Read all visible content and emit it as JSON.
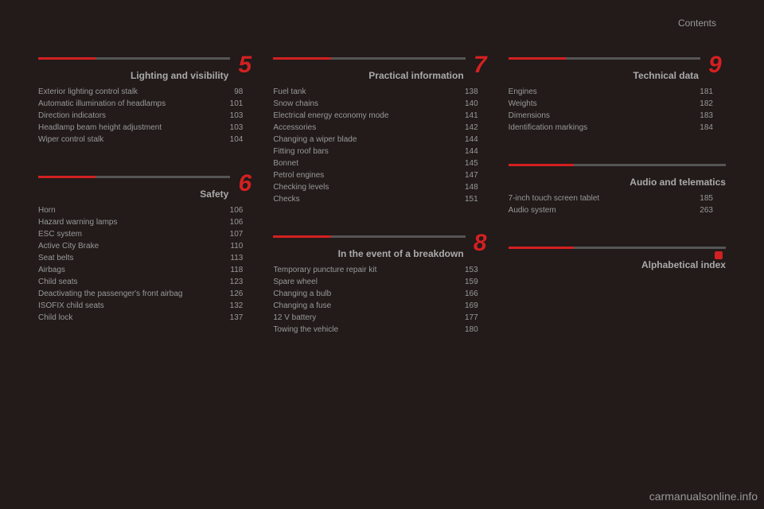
{
  "page_label": "Contents",
  "watermark": "carmanualsonline.info",
  "colors": {
    "accent": "#d32020",
    "bar_grey": "#555555",
    "text": "#999999",
    "background": "#221b1a"
  },
  "columns": [
    [
      {
        "number": "5",
        "title": "Lighting and visibility",
        "items": [
          {
            "label": "Exterior lighting control stalk",
            "page": "98"
          },
          {
            "label": "Automatic illumination of headlamps",
            "page": "101"
          },
          {
            "label": "Direction indicators",
            "page": "103"
          },
          {
            "label": "Headlamp beam height adjustment",
            "page": "103"
          },
          {
            "label": "Wiper control stalk",
            "page": "104"
          }
        ]
      },
      {
        "number": "6",
        "title": "Safety",
        "items": [
          {
            "label": "Horn",
            "page": "106"
          },
          {
            "label": "Hazard warning lamps",
            "page": "106"
          },
          {
            "label": "ESC system",
            "page": "107"
          },
          {
            "label": "Active City Brake",
            "page": "110"
          },
          {
            "label": "Seat belts",
            "page": "113"
          },
          {
            "label": "Airbags",
            "page": "118"
          },
          {
            "label": "Child seats",
            "page": "123"
          },
          {
            "label": "Deactivating the passenger's front airbag",
            "page": "126"
          },
          {
            "label": "ISOFIX child seats",
            "page": "132"
          },
          {
            "label": "Child lock",
            "page": "137"
          }
        ]
      }
    ],
    [
      {
        "number": "7",
        "title": "Practical information",
        "items": [
          {
            "label": "Fuel tank",
            "page": "138"
          },
          {
            "label": "Snow chains",
            "page": "140"
          },
          {
            "label": "Electrical energy economy mode",
            "page": "141"
          },
          {
            "label": "Accessories",
            "page": "142"
          },
          {
            "label": "Changing a wiper blade",
            "page": "144"
          },
          {
            "label": "Fitting roof bars",
            "page": "144"
          },
          {
            "label": "Bonnet",
            "page": "145"
          },
          {
            "label": "Petrol engines",
            "page": "147"
          },
          {
            "label": "Checking levels",
            "page": "148"
          },
          {
            "label": "Checks",
            "page": "151"
          }
        ]
      },
      {
        "number": "8",
        "title": "In the event of a breakdown",
        "items": [
          {
            "label": "Temporary puncture repair kit",
            "page": "153"
          },
          {
            "label": "Spare wheel",
            "page": "159"
          },
          {
            "label": "Changing a bulb",
            "page": "166"
          },
          {
            "label": "Changing a fuse",
            "page": "169"
          },
          {
            "label": "12 V battery",
            "page": "177"
          },
          {
            "label": "Towing the vehicle",
            "page": "180"
          }
        ]
      }
    ],
    [
      {
        "number": "9",
        "title": "Technical data",
        "items": [
          {
            "label": "Engines",
            "page": "181"
          },
          {
            "label": "Weights",
            "page": "182"
          },
          {
            "label": "Dimensions",
            "page": "183"
          },
          {
            "label": "Identification markings",
            "page": "184"
          }
        ]
      },
      {
        "number": "",
        "title": "Audio and telematics",
        "items": [
          {
            "label": "7-inch touch screen tablet",
            "page": "185"
          },
          {
            "label": "Audio system",
            "page": "263"
          }
        ]
      },
      {
        "number": "",
        "title": "Alphabetical index",
        "dot": true,
        "items": []
      }
    ]
  ]
}
